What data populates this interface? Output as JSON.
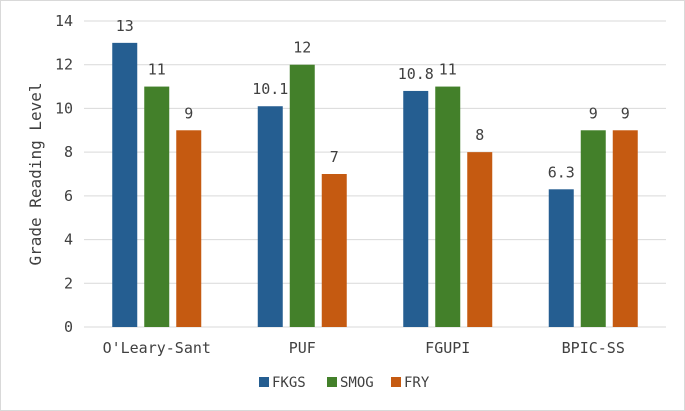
{
  "chart_data": {
    "type": "bar",
    "title": "",
    "xlabel": "",
    "ylabel": "Grade Reading Level",
    "ylim": [
      0,
      14
    ],
    "yticks": [
      0,
      2,
      4,
      6,
      8,
      10,
      12,
      14
    ],
    "grid": true,
    "legend_position": "bottom",
    "categories": [
      "O'Leary-Sant",
      "PUF",
      "FGUPI",
      "BPIC-SS"
    ],
    "series": [
      {
        "name": "FKGS",
        "color": "#255E91",
        "values": [
          13,
          10.1,
          10.8,
          6.3
        ]
      },
      {
        "name": "SMOG",
        "color": "#43802A",
        "values": [
          11,
          12,
          11,
          9
        ]
      },
      {
        "name": "FRY",
        "color": "#C55A11",
        "values": [
          9,
          7,
          8,
          9
        ]
      }
    ]
  }
}
